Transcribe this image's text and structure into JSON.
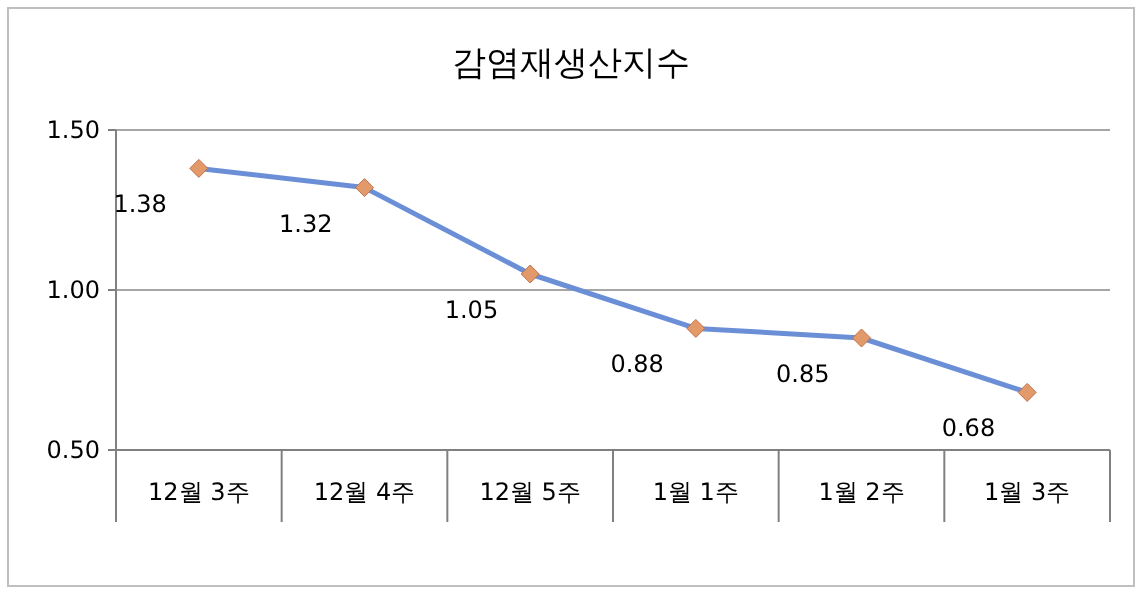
{
  "chart_data": {
    "type": "line",
    "title": "감염재생산지수",
    "categories": [
      "12월 3주",
      "12월 4주",
      "12월 5주",
      "1월 1주",
      "1월 2주",
      "1월 3주"
    ],
    "series": [
      {
        "color": "#6b8fd6",
        "values": [
          1.38,
          1.32,
          1.05,
          0.88,
          0.85,
          0.68
        ]
      }
    ],
    "ylim": [
      0.5,
      1.5
    ],
    "yticks": [
      {
        "value": 0.5,
        "label": "0.50"
      },
      {
        "value": 1.0,
        "label": "1.00"
      },
      {
        "value": 1.5,
        "label": "1.50"
      }
    ],
    "grid": "y",
    "marker": "diamond",
    "line_style": "solid",
    "data_labels": true
  }
}
